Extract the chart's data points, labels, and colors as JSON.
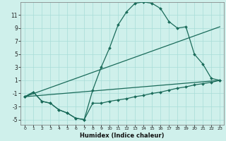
{
  "title": "",
  "xlabel": "Humidex (Indice chaleur)",
  "ylabel": "",
  "bg_color": "#cff0eb",
  "grid_color": "#a8ddd8",
  "line_color": "#1a6b5a",
  "xlim": [
    -0.5,
    23.5
  ],
  "ylim": [
    -5.8,
    13.0
  ],
  "xticks": [
    0,
    1,
    2,
    3,
    4,
    5,
    6,
    7,
    8,
    9,
    10,
    11,
    12,
    13,
    14,
    15,
    16,
    17,
    18,
    19,
    20,
    21,
    22,
    23
  ],
  "yticks": [
    -5,
    -3,
    -1,
    1,
    3,
    5,
    7,
    9,
    11
  ],
  "line1_x": [
    0,
    1,
    2,
    3,
    4,
    5,
    6,
    7,
    8,
    9,
    10,
    11,
    12,
    13,
    14,
    15,
    16,
    17,
    18,
    19,
    20,
    21,
    22,
    23
  ],
  "line1_y": [
    -1.5,
    -0.8,
    -2.2,
    -2.5,
    -3.5,
    -4.0,
    -4.8,
    -5.0,
    -0.5,
    3.0,
    6.0,
    9.5,
    11.5,
    12.8,
    13.0,
    12.8,
    12.0,
    10.0,
    9.0,
    9.2,
    5.0,
    3.5,
    1.3,
    1.0
  ],
  "line2_x": [
    0,
    1,
    2,
    3,
    4,
    5,
    6,
    7,
    8,
    9,
    10,
    11,
    12,
    13,
    14,
    15,
    16,
    17,
    18,
    19,
    20,
    21,
    22,
    23
  ],
  "line2_y": [
    -1.5,
    -0.8,
    -2.2,
    -2.5,
    -3.5,
    -4.0,
    -4.8,
    -5.0,
    -2.5,
    -2.5,
    -2.2,
    -2.0,
    -1.8,
    -1.5,
    -1.3,
    -1.0,
    -0.8,
    -0.5,
    -0.2,
    0.0,
    0.3,
    0.5,
    0.7,
    1.0
  ],
  "line3_x": [
    0,
    23
  ],
  "line3_y": [
    -1.5,
    1.0
  ],
  "line4_x": [
    0,
    23
  ],
  "line4_y": [
    -1.5,
    9.2
  ]
}
